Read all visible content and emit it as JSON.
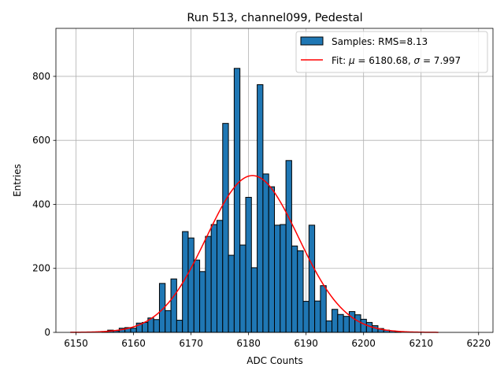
{
  "chart_data": {
    "type": "bar",
    "title": "Run 513, channel099, Pedestal",
    "xlabel": "ADC Counts",
    "ylabel": "Entries",
    "xlim": [
      6146.5,
      6222.5
    ],
    "ylim": [
      0,
      950
    ],
    "xticks": [
      6150,
      6160,
      6170,
      6180,
      6190,
      6200,
      6210,
      6220
    ],
    "yticks": [
      0,
      200,
      400,
      600,
      800
    ],
    "xtick_labels": [
      "6150",
      "6160",
      "6170",
      "6180",
      "6190",
      "6200",
      "6210",
      "6220"
    ],
    "ytick_labels": [
      "0",
      "200",
      "400",
      "600",
      "800"
    ],
    "grid": true,
    "legend_position": "top-right",
    "colors": {
      "bars": "#1f77b4",
      "bar_edge": "#000000",
      "fit": "#ff0000",
      "grid": "#b0b0b0"
    },
    "histogram": {
      "name": "Samples: RMS=8.13",
      "bin_width": 1,
      "bins": [
        {
          "x": 6155,
          "y": 2
        },
        {
          "x": 6156,
          "y": 7
        },
        {
          "x": 6157,
          "y": 5
        },
        {
          "x": 6158,
          "y": 13
        },
        {
          "x": 6159,
          "y": 15
        },
        {
          "x": 6160,
          "y": 13
        },
        {
          "x": 6161,
          "y": 29
        },
        {
          "x": 6162,
          "y": 31
        },
        {
          "x": 6163,
          "y": 45
        },
        {
          "x": 6164,
          "y": 40
        },
        {
          "x": 6165,
          "y": 153
        },
        {
          "x": 6166,
          "y": 68
        },
        {
          "x": 6167,
          "y": 167
        },
        {
          "x": 6168,
          "y": 38
        },
        {
          "x": 6169,
          "y": 315
        },
        {
          "x": 6170,
          "y": 295
        },
        {
          "x": 6171,
          "y": 226
        },
        {
          "x": 6172,
          "y": 190
        },
        {
          "x": 6173,
          "y": 300
        },
        {
          "x": 6174,
          "y": 337
        },
        {
          "x": 6175,
          "y": 350
        },
        {
          "x": 6176,
          "y": 653
        },
        {
          "x": 6177,
          "y": 241
        },
        {
          "x": 6178,
          "y": 825
        },
        {
          "x": 6179,
          "y": 273
        },
        {
          "x": 6180,
          "y": 422
        },
        {
          "x": 6181,
          "y": 202
        },
        {
          "x": 6182,
          "y": 774
        },
        {
          "x": 6183,
          "y": 495
        },
        {
          "x": 6184,
          "y": 455
        },
        {
          "x": 6185,
          "y": 335
        },
        {
          "x": 6186,
          "y": 337
        },
        {
          "x": 6187,
          "y": 537
        },
        {
          "x": 6188,
          "y": 270
        },
        {
          "x": 6189,
          "y": 255
        },
        {
          "x": 6190,
          "y": 97
        },
        {
          "x": 6191,
          "y": 335
        },
        {
          "x": 6192,
          "y": 98
        },
        {
          "x": 6193,
          "y": 146
        },
        {
          "x": 6194,
          "y": 36
        },
        {
          "x": 6195,
          "y": 72
        },
        {
          "x": 6196,
          "y": 56
        },
        {
          "x": 6197,
          "y": 50
        },
        {
          "x": 6198,
          "y": 65
        },
        {
          "x": 6199,
          "y": 55
        },
        {
          "x": 6200,
          "y": 41
        },
        {
          "x": 6201,
          "y": 31
        },
        {
          "x": 6202,
          "y": 21
        },
        {
          "x": 6203,
          "y": 12
        },
        {
          "x": 6204,
          "y": 7
        },
        {
          "x": 6205,
          "y": 5
        },
        {
          "x": 6206,
          "y": 2
        }
      ]
    },
    "fit": {
      "name_prefix": "Fit: ",
      "mu_symbol": "μ",
      "mu_text": " = 6180.68, ",
      "sigma_symbol": "σ",
      "sigma_text": " = 7.997",
      "mu": 6180.68,
      "sigma": 7.997,
      "amplitude": 490,
      "x_range": [
        6149,
        6213
      ]
    }
  }
}
